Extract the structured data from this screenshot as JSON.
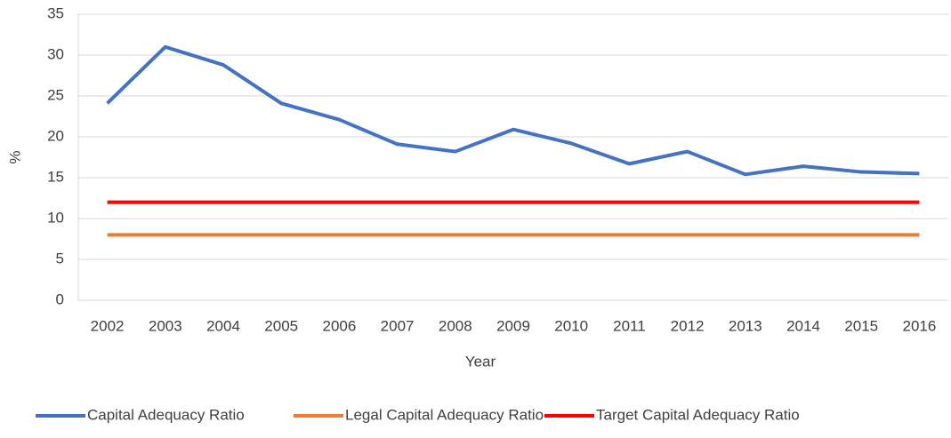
{
  "chart_data": {
    "type": "line",
    "x_label": "Year",
    "y_label": "%",
    "categories": [
      "2002",
      "2003",
      "2004",
      "2005",
      "2006",
      "2007",
      "2008",
      "2009",
      "2010",
      "2011",
      "2012",
      "2013",
      "2014",
      "2015",
      "2016"
    ],
    "series": [
      {
        "name": "Capital Adequacy Ratio",
        "color": "#4472c4",
        "values": [
          24.1,
          31.0,
          28.8,
          24.1,
          22.1,
          19.1,
          18.2,
          20.9,
          19.2,
          16.7,
          18.2,
          15.4,
          16.4,
          15.7,
          15.5
        ]
      },
      {
        "name": "Legal Capital Adequacy Ratio",
        "color": "#ed7d31",
        "values": [
          8,
          8,
          8,
          8,
          8,
          8,
          8,
          8,
          8,
          8,
          8,
          8,
          8,
          8,
          8
        ]
      },
      {
        "name": "Target Capital Adequacy Ratio",
        "color": "#ff0000",
        "values": [
          12,
          12,
          12,
          12,
          12,
          12,
          12,
          12,
          12,
          12,
          12,
          12,
          12,
          12,
          12
        ]
      }
    ],
    "ylim": [
      0,
      35
    ],
    "yticks": [
      0,
      5,
      10,
      15,
      20,
      25,
      30,
      35
    ],
    "grid": true,
    "legend": "bottom"
  }
}
